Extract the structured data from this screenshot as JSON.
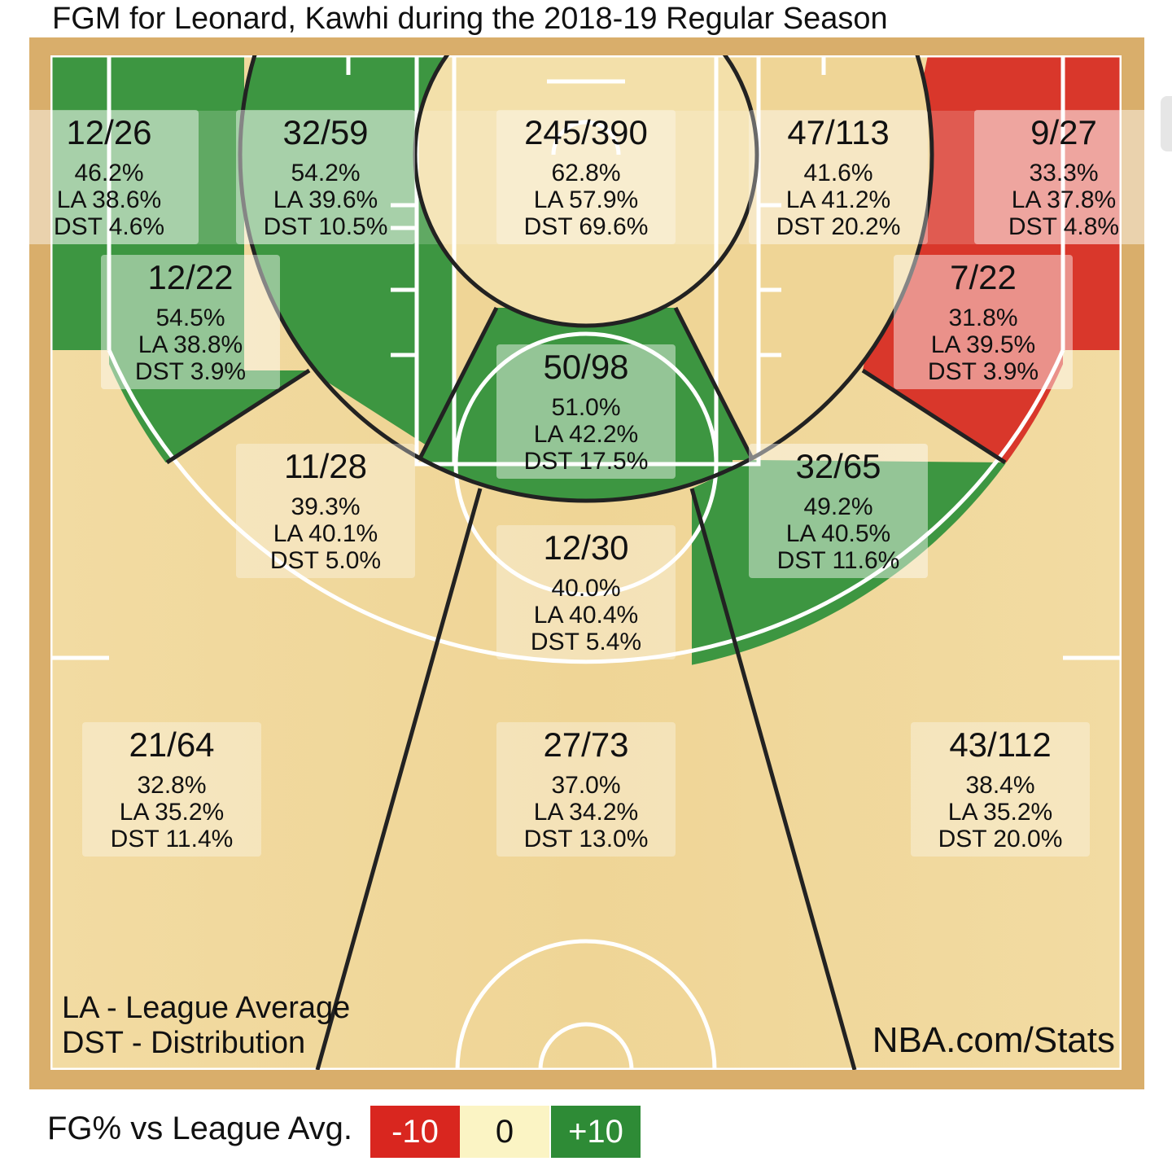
{
  "title": "FGM for Leonard, Kawhi during the 2018-19 Regular Season",
  "notes": {
    "la": "LA - League Average",
    "dst": "DST - Distribution",
    "source": "NBA.com/Stats"
  },
  "legend": {
    "label": "FG% vs League Avg.",
    "items": [
      {
        "label": "-10",
        "color": "#d9261f"
      },
      {
        "label": "0",
        "color": "#fbf4c4"
      },
      {
        "label": "+10",
        "color": "#2e8b36"
      }
    ]
  },
  "colors": {
    "wood": "#f0d79a",
    "wood_edge": "#d9ae6b",
    "line": "#ffffff",
    "zone_line": "#222222"
  },
  "chart_data": {
    "type": "shot-chart",
    "player": "Leonard, Kawhi",
    "season": "2018-19 Regular Season",
    "zones": [
      {
        "id": "left-corner-3",
        "fgm_fga": "12/26",
        "fg_pct": "46.2%",
        "la": "LA 38.6%",
        "dst": "DST 4.6%",
        "rating": "above"
      },
      {
        "id": "left-baseline-mid",
        "fgm_fga": "32/59",
        "fg_pct": "54.2%",
        "la": "LA 39.6%",
        "dst": "DST 10.5%",
        "rating": "above"
      },
      {
        "id": "restricted-area",
        "fgm_fga": "245/390",
        "fg_pct": "62.8%",
        "la": "LA 57.9%",
        "dst": "DST 69.6%",
        "rating": "neutral"
      },
      {
        "id": "right-baseline-mid",
        "fgm_fga": "47/113",
        "fg_pct": "41.6%",
        "la": "LA 41.2%",
        "dst": "DST 20.2%",
        "rating": "neutral"
      },
      {
        "id": "right-corner-3",
        "fgm_fga": "9/27",
        "fg_pct": "33.3%",
        "la": "LA 37.8%",
        "dst": "DST 4.8%",
        "rating": "below"
      },
      {
        "id": "left-wing-mid",
        "fgm_fga": "12/22",
        "fg_pct": "54.5%",
        "la": "LA 38.8%",
        "dst": "DST 3.9%",
        "rating": "above"
      },
      {
        "id": "right-wing-mid",
        "fgm_fga": "7/22",
        "fg_pct": "31.8%",
        "la": "LA 39.5%",
        "dst": "DST 3.9%",
        "rating": "below"
      },
      {
        "id": "paint-non-ra",
        "fgm_fga": "50/98",
        "fg_pct": "51.0%",
        "la": "LA 42.2%",
        "dst": "DST 17.5%",
        "rating": "above"
      },
      {
        "id": "left-center-mid",
        "fgm_fga": "11/28",
        "fg_pct": "39.3%",
        "la": "LA 40.1%",
        "dst": "DST 5.0%",
        "rating": "neutral"
      },
      {
        "id": "right-center-mid",
        "fgm_fga": "32/65",
        "fg_pct": "49.2%",
        "la": "LA 40.5%",
        "dst": "DST 11.6%",
        "rating": "above"
      },
      {
        "id": "center-mid",
        "fgm_fga": "12/30",
        "fg_pct": "40.0%",
        "la": "LA 40.4%",
        "dst": "DST 5.4%",
        "rating": "neutral"
      },
      {
        "id": "left-wing-3",
        "fgm_fga": "21/64",
        "fg_pct": "32.8%",
        "la": "LA 35.2%",
        "dst": "DST 11.4%",
        "rating": "neutral"
      },
      {
        "id": "top-key-3",
        "fgm_fga": "27/73",
        "fg_pct": "37.0%",
        "la": "LA 34.2%",
        "dst": "DST 13.0%",
        "rating": "neutral"
      },
      {
        "id": "right-wing-3",
        "fgm_fga": "43/112",
        "fg_pct": "38.4%",
        "la": "LA 35.2%",
        "dst": "DST 20.0%",
        "rating": "neutral"
      }
    ]
  }
}
